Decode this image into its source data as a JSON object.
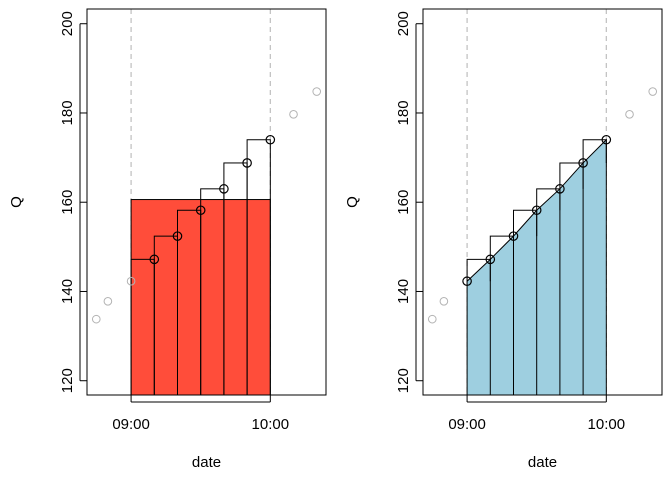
{
  "chart_data": [
    {
      "type": "scatter",
      "xlabel": "date",
      "ylabel": "Q",
      "xlim": [
        "08:41",
        "10:24"
      ],
      "ylim": [
        116.8,
        203.3
      ],
      "x_ticks": [
        "09:00",
        "10:00"
      ],
      "y_ticks": [
        120,
        140,
        160,
        180,
        200
      ],
      "window": [
        "09:00",
        "10:00"
      ],
      "fill_color": "#FF4D3A",
      "points": [
        {
          "x": "08:45",
          "y": 133.8,
          "in_window": false
        },
        {
          "x": "08:50",
          "y": 137.8,
          "in_window": false
        },
        {
          "x": "09:00",
          "y": 142.3,
          "in_window": false
        },
        {
          "x": "09:10",
          "y": 147.2,
          "in_window": true
        },
        {
          "x": "09:20",
          "y": 152.4,
          "in_window": true
        },
        {
          "x": "09:30",
          "y": 158.2,
          "in_window": true
        },
        {
          "x": "09:40",
          "y": 163.0,
          "in_window": true
        },
        {
          "x": "09:50",
          "y": 168.8,
          "in_window": true
        },
        {
          "x": "10:00",
          "y": 174.0,
          "in_window": true
        },
        {
          "x": "10:10",
          "y": 179.7,
          "in_window": false
        },
        {
          "x": "10:20",
          "y": 184.8,
          "in_window": false
        }
      ],
      "mean_level": 160.6
    },
    {
      "type": "scatter",
      "xlabel": "date",
      "ylabel": "Q",
      "xlim": [
        "08:41",
        "10:24"
      ],
      "ylim": [
        116.8,
        203.3
      ],
      "x_ticks": [
        "09:00",
        "10:00"
      ],
      "y_ticks": [
        120,
        140,
        160,
        180,
        200
      ],
      "window": [
        "09:00",
        "10:00"
      ],
      "fill_color": "#9ECFE0",
      "points": [
        {
          "x": "08:45",
          "y": 133.8,
          "in_window": false
        },
        {
          "x": "08:50",
          "y": 137.8,
          "in_window": false
        },
        {
          "x": "09:00",
          "y": 142.3,
          "in_window": true
        },
        {
          "x": "09:10",
          "y": 147.2,
          "in_window": true
        },
        {
          "x": "09:20",
          "y": 152.4,
          "in_window": true
        },
        {
          "x": "09:30",
          "y": 158.2,
          "in_window": true
        },
        {
          "x": "09:40",
          "y": 163.0,
          "in_window": true
        },
        {
          "x": "09:50",
          "y": 168.8,
          "in_window": true
        },
        {
          "x": "10:00",
          "y": 174.0,
          "in_window": true
        },
        {
          "x": "10:10",
          "y": 179.7,
          "in_window": false
        },
        {
          "x": "10:20",
          "y": 184.8,
          "in_window": false
        }
      ]
    }
  ]
}
